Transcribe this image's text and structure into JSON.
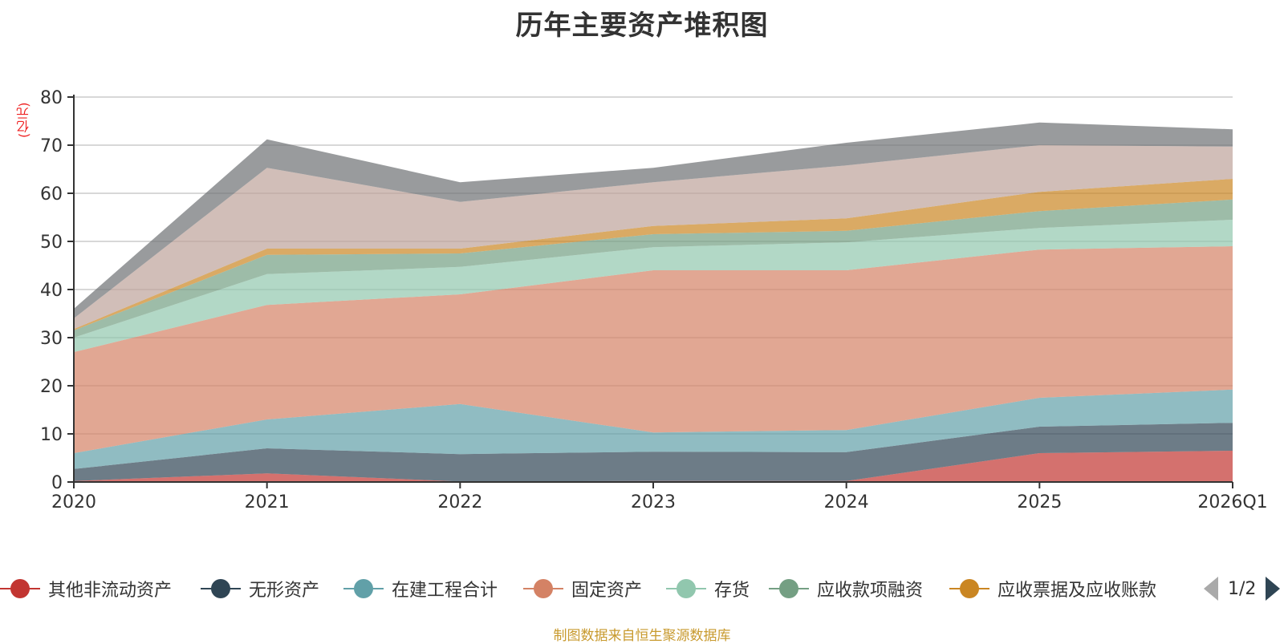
{
  "chart_data": {
    "type": "area",
    "stacked": true,
    "title": "历年主要资产堆积图",
    "ylabel": "(亿元)",
    "xlabel": "",
    "categories": [
      "2020",
      "2021",
      "2022",
      "2023",
      "2024",
      "2025",
      "2026Q1"
    ],
    "ylim": [
      0,
      80
    ],
    "yticks": [
      0,
      10,
      20,
      30,
      40,
      50,
      60,
      70,
      80
    ],
    "grid": true,
    "legend_position": "bottom",
    "series": [
      {
        "name": "其他非流动资产",
        "color": "#c23531",
        "values": [
          0.2,
          1.8,
          0.1,
          0.2,
          0.2,
          6.0,
          6.5
        ]
      },
      {
        "name": "无形资产",
        "color": "#2f4554",
        "values": [
          2.5,
          5.2,
          5.7,
          6.1,
          6.0,
          5.5,
          5.8
        ]
      },
      {
        "name": "在建工程合计",
        "color": "#61a0a8",
        "values": [
          3.3,
          6.0,
          10.4,
          4.0,
          4.6,
          6.0,
          6.9
        ]
      },
      {
        "name": "固定资产",
        "color": "#d48265",
        "values": [
          21.0,
          23.8,
          22.8,
          33.7,
          33.2,
          30.8,
          29.8
        ]
      },
      {
        "name": "存货",
        "color": "#91c7ae",
        "values": [
          3.0,
          6.4,
          5.7,
          4.8,
          5.8,
          4.5,
          5.5
        ]
      },
      {
        "name": "应收款项融资",
        "color": "#749f83",
        "values": [
          1.5,
          4.0,
          2.8,
          2.7,
          2.4,
          3.5,
          4.2
        ]
      },
      {
        "name": "应收票据及应收账款",
        "color": "#ca8622",
        "values": [
          0.3,
          1.3,
          1.0,
          1.7,
          2.6,
          4.0,
          4.3
        ]
      },
      {
        "name": "",
        "color": "#bda29a",
        "values": [
          2.2,
          16.8,
          9.7,
          9.1,
          11.0,
          9.7,
          6.7
        ]
      },
      {
        "name": "",
        "color": "#6e7074",
        "values": [
          2.0,
          5.9,
          4.1,
          3.0,
          4.7,
          4.7,
          3.6
        ]
      }
    ]
  },
  "legend": {
    "items": [
      {
        "label": "其他非流动资产",
        "color": "#c23531"
      },
      {
        "label": "无形资产",
        "color": "#2f4554"
      },
      {
        "label": "在建工程合计",
        "color": "#61a0a8"
      },
      {
        "label": "固定资产",
        "color": "#d48265"
      },
      {
        "label": "存货",
        "color": "#91c7ae"
      },
      {
        "label": "应收款项融资",
        "color": "#749f83"
      },
      {
        "label": "应收票据及应收账款",
        "color": "#ca8622"
      }
    ],
    "page": "1/2"
  },
  "footer": "制图数据来自恒生聚源数据库"
}
